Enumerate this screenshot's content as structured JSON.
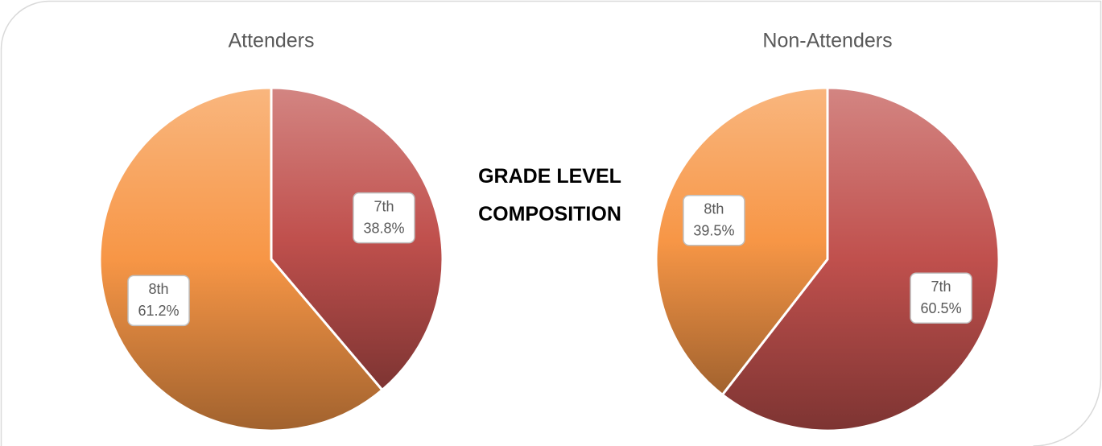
{
  "title": "GRADE LEVEL COMPOSITION",
  "chart_data": [
    {
      "type": "pie",
      "title": "Attenders",
      "categories": [
        "7th",
        "8th"
      ],
      "values": [
        38.8,
        61.2
      ],
      "value_labels": [
        "38.8%",
        "61.2%"
      ],
      "colors": [
        "#c0504d",
        "#f79646"
      ]
    },
    {
      "type": "pie",
      "title": "Non-Attenders",
      "categories": [
        "7th",
        "8th"
      ],
      "values": [
        60.5,
        39.5
      ],
      "value_labels": [
        "60.5%",
        "39.5%"
      ],
      "colors": [
        "#c0504d",
        "#f79646"
      ]
    }
  ]
}
